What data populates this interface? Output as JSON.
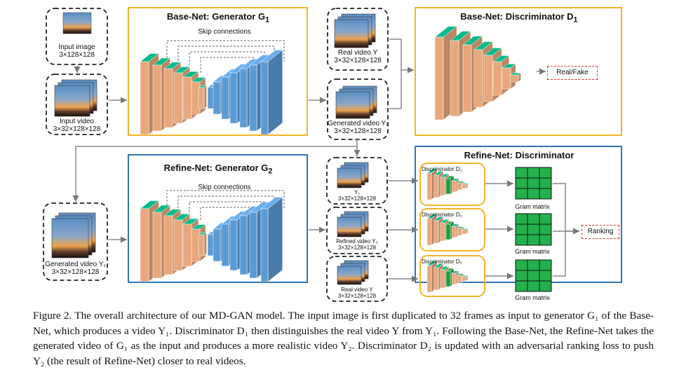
{
  "figure": {
    "base_net_title": "Base-Net: Generator G",
    "base_net_title_sub": "1",
    "base_net_skip_label": "Skip connections",
    "disc1_title": "Base-Net: Discriminator D",
    "disc1_title_sub": "1",
    "refine_gen_title": "Refine-Net: Generator G",
    "refine_gen_title_sub": "2",
    "refine_skip_label": "Skip connections",
    "disc2_title": "Refine-Net: Discriminator",
    "input_image_label": "Input image",
    "input_image_dims": "3×128×128",
    "input_video_label": "Input video",
    "input_video_dims": "3×32×128×128",
    "real_video_label": "Real video Y",
    "real_video_dims": "3×32×128×128",
    "gen_video_label": "Generated video Y₁",
    "gen_video_dims": "3×32×128×128",
    "y1_label": "Y₁",
    "y1_dims": "3×32×128×128",
    "gen_video_y1_label": "Generated video Y₁",
    "gen_video_y1_dims": "3×32×128×128",
    "refined_label": "Refined video Y₂",
    "refined_dims": "3×32×128×128",
    "real_video2_label": "Real video Y",
    "real_video2_dims": "3×32×128×128",
    "d1_output": "Real/Fake",
    "d2_inner_label": "Discriminator D₂",
    "gram_label": "Gram matrix",
    "ranking_output": "Ranking"
  },
  "caption": "Figure 2. The overall architecture of our MD-GAN model. The input image is first duplicated to 32 frames as input to generator G₁ of the Base-Net, which produces a video Y₁. Discriminator D₁ then distinguishes the real video Y from Y₁. Following the Base-Net, the Refine-Net takes the generated video of G₁ as the input and produces a more realistic video Y₂. Discriminator D₂ is updated with an adversarial ranking loss to push Y₂ (the result of Refine-Net) closer to real videos.",
  "colors": {
    "orange_layer": "#e8a77c",
    "blue_layer": "#5b9bd5",
    "green_layer": "#1a9e3a",
    "gold_border": "#f0b428",
    "blue_border": "#2e75b6",
    "gram_green": "#22b14c",
    "output_border": "#e03030"
  }
}
